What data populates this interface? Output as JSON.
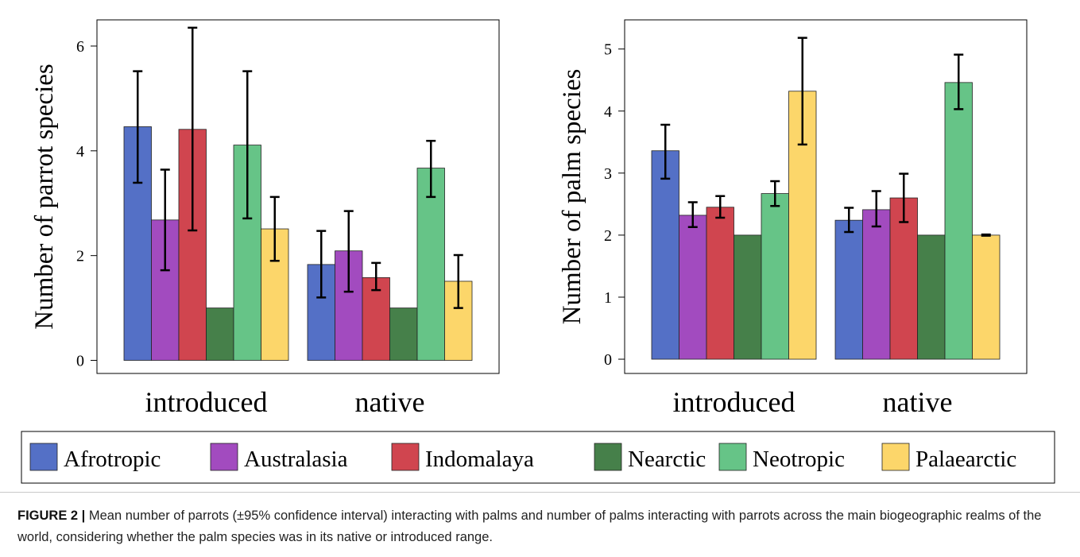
{
  "chart_data": [
    {
      "type": "bar",
      "ylabel": "Number of parrot species",
      "categories": [
        "introduced",
        "native"
      ],
      "ylim": [
        -0.25,
        6.5
      ],
      "yticks": [
        0,
        2,
        4,
        6
      ],
      "series": [
        {
          "name": "Afrotropic",
          "color": "#5470c6",
          "values": [
            4.46,
            1.83
          ],
          "ci_low": [
            3.39,
            1.2
          ],
          "ci_high": [
            5.52,
            2.47
          ]
        },
        {
          "name": "Australasia",
          "color": "#a24bbf",
          "values": [
            2.68,
            2.09
          ],
          "ci_low": [
            1.72,
            1.31
          ],
          "ci_high": [
            3.64,
            2.85
          ]
        },
        {
          "name": "Indomalaya",
          "color": "#d0454f",
          "values": [
            4.41,
            1.58
          ],
          "ci_low": [
            2.48,
            1.34
          ],
          "ci_high": [
            6.35,
            1.86
          ]
        },
        {
          "name": "Nearctic",
          "color": "#46804a",
          "values": [
            1.0,
            1.0
          ],
          "ci_low": [
            null,
            null
          ],
          "ci_high": [
            null,
            null
          ]
        },
        {
          "name": "Neotropic",
          "color": "#66c487",
          "values": [
            4.11,
            3.67
          ],
          "ci_low": [
            2.71,
            3.12
          ],
          "ci_high": [
            5.52,
            4.19
          ]
        },
        {
          "name": "Palaearctic",
          "color": "#fcd66a",
          "values": [
            2.51,
            1.51
          ],
          "ci_low": [
            1.9,
            1.0
          ],
          "ci_high": [
            3.12,
            2.01
          ]
        }
      ]
    },
    {
      "type": "bar",
      "ylabel": "Number of palm species",
      "categories": [
        "introduced",
        "native"
      ],
      "ylim": [
        -0.23,
        5.47
      ],
      "yticks": [
        0,
        1,
        2,
        3,
        4,
        5
      ],
      "series": [
        {
          "color": "#5470c6",
          "values": [
            3.36,
            2.24
          ],
          "ci_low": [
            2.91,
            2.05
          ],
          "ci_high": [
            3.78,
            2.44
          ]
        },
        {
          "color": "#a24bbf",
          "values": [
            2.32,
            2.41
          ],
          "ci_low": [
            2.13,
            2.14
          ],
          "ci_high": [
            2.53,
            2.71
          ]
        },
        {
          "color": "#d0454f",
          "values": [
            2.45,
            2.6
          ],
          "ci_low": [
            2.28,
            2.21
          ],
          "ci_high": [
            2.63,
            2.99
          ]
        },
        {
          "color": "#46804a",
          "values": [
            2.0,
            2.0
          ],
          "ci_low": [
            null,
            null
          ],
          "ci_high": [
            null,
            null
          ]
        },
        {
          "color": "#66c487",
          "values": [
            2.67,
            4.46
          ],
          "ci_low": [
            2.47,
            4.03
          ],
          "ci_high": [
            2.87,
            4.91
          ]
        },
        {
          "color": "#fcd66a",
          "values": [
            4.32,
            2.0
          ],
          "ci_low": [
            3.46,
            1.99
          ],
          "ci_high": [
            5.18,
            2.01
          ]
        }
      ]
    }
  ],
  "caption": {
    "label": "FIGURE 2 |",
    "text": "Mean number of parrots (±95% confidence interval) interacting with palms and number of palms interacting with parrots across the main biogeographic realms of the world, considering whether the palm species was in its native or introduced range."
  }
}
